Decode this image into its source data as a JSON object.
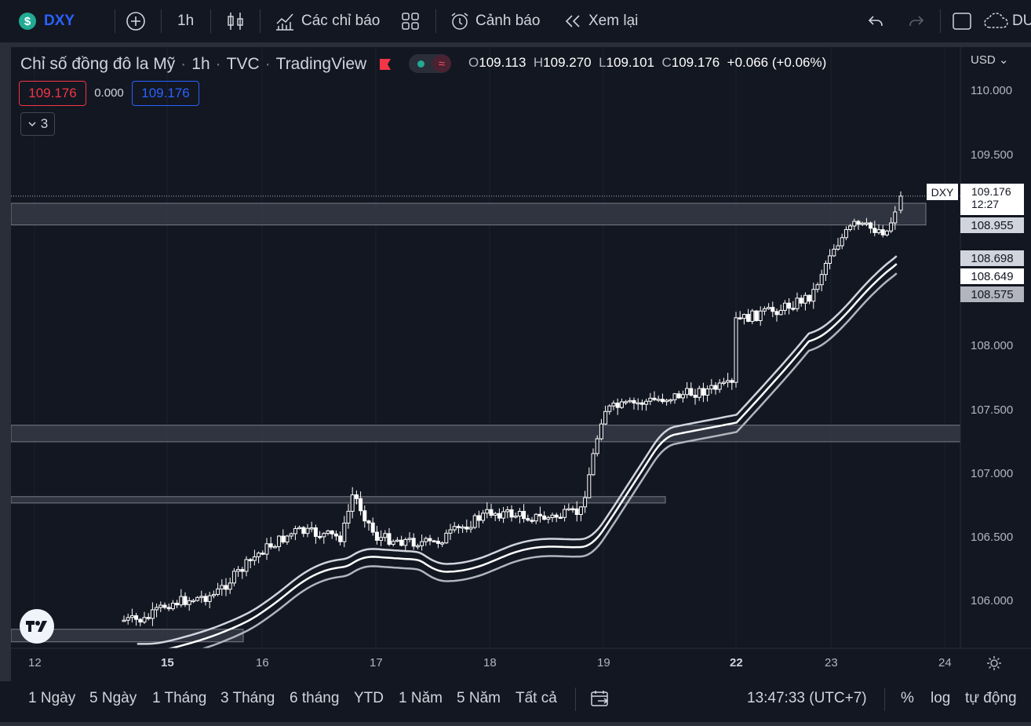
{
  "toolbar": {
    "symbol": "DXY",
    "symbol_icon": "$",
    "interval": "1h",
    "indicators_label": "Các chỉ báo",
    "alerts_label": "Cảnh báo",
    "replay_label": "Xem lại",
    "right_cut_label": "DU"
  },
  "legend": {
    "title": "Chỉ số đồng đô la Mỹ",
    "interval": "1h",
    "exchange": "TVC",
    "source": "TradingView",
    "open_label": "O",
    "open": "109.113",
    "high_label": "H",
    "high": "109.270",
    "low_label": "L",
    "low": "109.101",
    "close_label": "C",
    "close": "109.176",
    "change": "+0.066 (+0.06%)",
    "bid": "109.176",
    "spread": "0.000",
    "ask": "109.176",
    "collapsed_count": "3",
    "toggle_icon": "≈"
  },
  "price_axis": {
    "currency": "USD",
    "ticks": [
      "110.000",
      "109.500",
      "108.000",
      "107.500",
      "107.000",
      "106.500",
      "106.000"
    ],
    "symbol_tag": "DXY",
    "last_price": "109.176",
    "countdown": "12:27",
    "tags": [
      "108.955",
      "108.698",
      "108.649",
      "108.575"
    ]
  },
  "time_axis": {
    "labels": [
      "12",
      "15",
      "16",
      "17",
      "18",
      "19",
      "22",
      "23",
      "24"
    ],
    "bold_labels": [
      "15",
      "22"
    ]
  },
  "bottom": {
    "ranges": [
      "1 Ngày",
      "5 Ngày",
      "1 Tháng",
      "3 Tháng",
      "6 tháng",
      "YTD",
      "1 Năm",
      "5 Năm",
      "Tất cả"
    ],
    "clock": "13:47:33 (UTC+7)",
    "percent": "%",
    "log": "log",
    "auto": "tự động"
  },
  "colors": {
    "background": "#131722",
    "panel": "#2a2e39",
    "candle": "#ffffff",
    "zone": "#363a45",
    "bid": "#f23645",
    "ask": "#2962ff",
    "symbol_icon": "#22ab94"
  },
  "chart_data": {
    "type": "candlestick",
    "symbol": "DXY",
    "interval": "1h",
    "ylim": [
      105.8,
      110.3
    ],
    "last_close": 109.176,
    "price_path": [
      [
        14.5,
        105.85
      ],
      [
        15.0,
        105.98
      ],
      [
        15.5,
        106.05
      ],
      [
        16.0,
        106.4
      ],
      [
        16.3,
        106.55
      ],
      [
        16.7,
        106.5
      ],
      [
        16.8,
        106.85
      ],
      [
        17.0,
        106.5
      ],
      [
        17.5,
        106.45
      ],
      [
        17.8,
        106.6
      ],
      [
        18.0,
        106.7
      ],
      [
        18.5,
        106.65
      ],
      [
        18.8,
        106.7
      ],
      [
        19.0,
        107.5
      ],
      [
        19.5,
        107.6
      ],
      [
        20.0,
        107.7
      ],
      [
        20.5,
        107.95
      ],
      [
        21.0,
        108.15
      ],
      [
        21.5,
        108.15
      ],
      [
        22.0,
        108.2
      ],
      [
        22.5,
        108.3
      ],
      [
        22.8,
        108.4
      ],
      [
        23.0,
        108.75
      ],
      [
        23.2,
        108.95
      ],
      [
        23.5,
        108.9
      ],
      [
        23.6,
        109.176
      ]
    ],
    "bands": [
      108.698,
      108.649,
      108.575
    ],
    "zones": [
      [
        109.12,
        108.95
      ],
      [
        107.38,
        107.25
      ],
      [
        106.82,
        106.77
      ]
    ]
  }
}
